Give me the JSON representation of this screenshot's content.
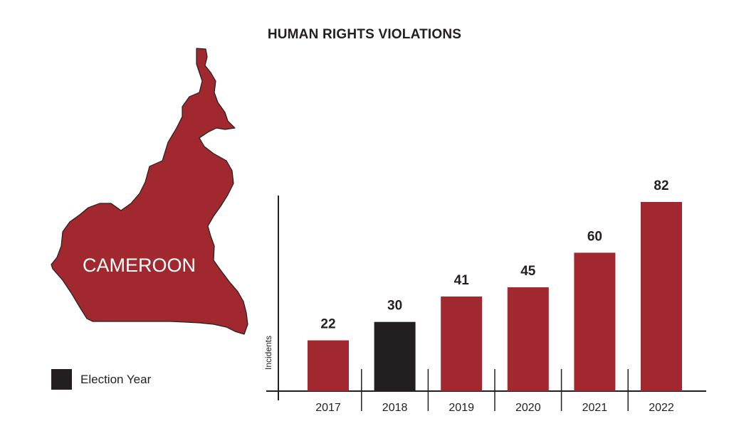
{
  "title": "HUMAN RIGHTS VIOLATIONS",
  "map": {
    "label": "CAMEROON",
    "fill_color": "#a0282e"
  },
  "legend": {
    "label": "Election Year",
    "color": "#231f20"
  },
  "chart_data": {
    "type": "bar",
    "title": "HUMAN RIGHTS VIOLATIONS",
    "categories": [
      "2017",
      "2018",
      "2019",
      "2020",
      "2021",
      "2022"
    ],
    "values": [
      22,
      30,
      41,
      45,
      60,
      82
    ],
    "value_labels": [
      "22",
      "30",
      "41",
      "45",
      "60",
      "82"
    ],
    "highlight": [
      false,
      true,
      false,
      false,
      false,
      false
    ],
    "xlabel": "",
    "ylabel": "Incidents",
    "ylim": [
      0,
      82
    ],
    "colors": {
      "default": "#a0282e",
      "highlight": "#231f20"
    },
    "grid": false,
    "legend_position": "bottom-left"
  }
}
